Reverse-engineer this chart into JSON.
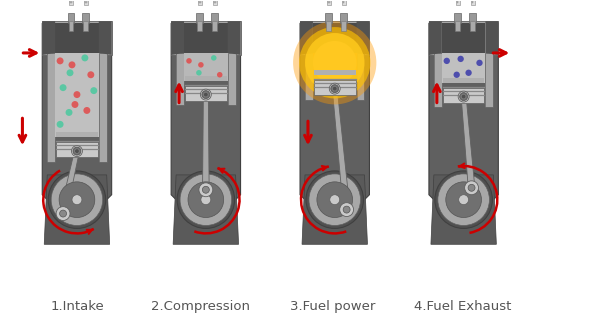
{
  "labels": [
    "1.Intake",
    "2.Compression",
    "3.Fuel power",
    "4.Fuel Exhaust"
  ],
  "bg_color": "#ffffff",
  "arrow_color": "#cc0000",
  "dot_red": "#e05050",
  "dot_cyan": "#50c8a0",
  "dot_exhaust": "#3a3aaa",
  "label_fontsize": 9.5,
  "label_color": "#555555",
  "centers": [
    75,
    205,
    335,
    465
  ],
  "gray1": "#787878",
  "gray2": "#a8a8a8",
  "gray3": "#cacaca",
  "gray4": "#606060",
  "gray_dark": "#4a4a4a",
  "gray_body": "#686868"
}
